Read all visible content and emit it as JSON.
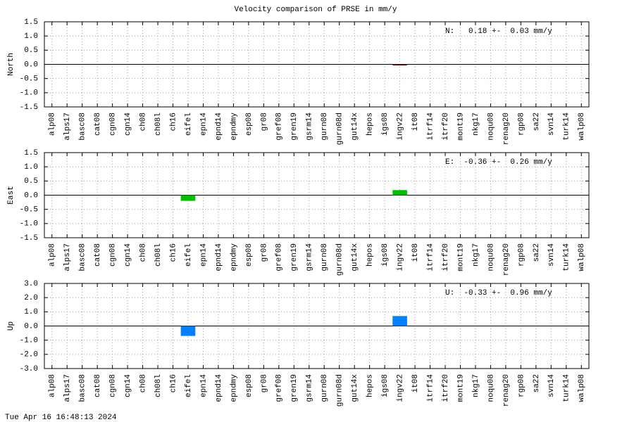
{
  "title": "Velocity comparison of PRSE in mm/y",
  "timestamp": "Tue Apr 16 16:48:13 2024",
  "chart_data": [
    {
      "type": "bar",
      "ylabel": "North",
      "annotation": "N:   0.18 +-  0.03 mm/y",
      "color": "#8b0000",
      "grid": true,
      "categories": [
        "alp08",
        "alps17",
        "basc08",
        "cat08",
        "cgn08",
        "cgn14",
        "ch08",
        "ch08l",
        "ch16",
        "eifel",
        "epn14",
        "epnd14",
        "epndmy",
        "esp08",
        "gr08",
        "gref08",
        "gren19",
        "gsrm14",
        "gurn08",
        "gurn08d",
        "gut14x",
        "hepos",
        "igs08",
        "ingv22",
        "it08",
        "itrf14",
        "itrf20",
        "mont19",
        "nkg17",
        "noqu08",
        "renag20",
        "rgp08",
        "sa22",
        "svn14",
        "turk14",
        "walp08"
      ],
      "values": [
        null,
        null,
        null,
        null,
        null,
        null,
        null,
        null,
        null,
        null,
        null,
        null,
        null,
        null,
        null,
        null,
        null,
        null,
        null,
        null,
        null,
        null,
        null,
        -0.02,
        null,
        null,
        null,
        null,
        null,
        null,
        null,
        null,
        null,
        null,
        null,
        null
      ],
      "ylim": [
        -1.5,
        1.5
      ],
      "yticks": [
        -1.5,
        {
          "value": -1,
          "label": "-1.0"
        },
        -0.5,
        {
          "value": 0,
          "label": "0.0"
        },
        0.5,
        {
          "value": 1,
          "label": "1.0"
        },
        1.5
      ]
    },
    {
      "type": "bar",
      "ylabel": "East",
      "annotation": "E:  -0.36 +-  0.26 mm/y",
      "color": "#00c000",
      "grid": true,
      "categories": [
        "alp08",
        "alps17",
        "basc08",
        "cat08",
        "cgn08",
        "cgn14",
        "ch08",
        "ch08l",
        "ch16",
        "eifel",
        "epn14",
        "epnd14",
        "epndmy",
        "esp08",
        "gr08",
        "gref08",
        "gren19",
        "gsrm14",
        "gurn08",
        "gurn08d",
        "gut14x",
        "hepos",
        "igs08",
        "ingv22",
        "it08",
        "itrf14",
        "itrf20",
        "mont19",
        "nkg17",
        "noqu08",
        "renag20",
        "rgp08",
        "sa22",
        "svn14",
        "turk14",
        "walp08"
      ],
      "values": [
        null,
        null,
        null,
        null,
        null,
        null,
        null,
        null,
        null,
        -0.2,
        null,
        null,
        null,
        null,
        null,
        null,
        null,
        null,
        null,
        null,
        null,
        null,
        null,
        0.18,
        null,
        null,
        null,
        null,
        null,
        null,
        null,
        null,
        null,
        null,
        null,
        null
      ],
      "ylim": [
        -1.5,
        1.5
      ],
      "yticks": [
        -1.5,
        {
          "value": -1,
          "label": "-1.0"
        },
        -0.5,
        {
          "value": 0,
          "label": "0.0"
        },
        0.5,
        {
          "value": 1,
          "label": "1.0"
        },
        1.5
      ]
    },
    {
      "type": "bar",
      "ylabel": "Up",
      "annotation": "U:  -0.33 +-  0.96 mm/y",
      "color": "#0080ff",
      "grid": true,
      "categories": [
        "alp08",
        "alps17",
        "basc08",
        "cat08",
        "cgn08",
        "cgn14",
        "ch08",
        "ch08l",
        "ch16",
        "eifel",
        "epn14",
        "epnd14",
        "epndmy",
        "esp08",
        "gr08",
        "gref08",
        "gren19",
        "gsrm14",
        "gurn08",
        "gurn08d",
        "gut14x",
        "hepos",
        "igs08",
        "ingv22",
        "it08",
        "itrf14",
        "itrf20",
        "mont19",
        "nkg17",
        "noqu08",
        "renag20",
        "rgp08",
        "sa22",
        "svn14",
        "turk14",
        "walp08"
      ],
      "values": [
        null,
        null,
        null,
        null,
        null,
        null,
        null,
        null,
        null,
        -0.7,
        null,
        null,
        null,
        null,
        null,
        null,
        null,
        null,
        null,
        null,
        null,
        null,
        null,
        0.7,
        null,
        null,
        null,
        null,
        null,
        null,
        null,
        null,
        null,
        null,
        null,
        null
      ],
      "ylim": [
        -3,
        3
      ],
      "yticks": [
        {
          "value": -3,
          "label": "-3.0"
        },
        {
          "value": -2,
          "label": "-2.0"
        },
        {
          "value": -1,
          "label": "-1.0"
        },
        {
          "value": 0,
          "label": "0.0"
        },
        {
          "value": 1,
          "label": "1.0"
        },
        {
          "value": 2,
          "label": "2.0"
        },
        {
          "value": 3,
          "label": "3.0"
        }
      ]
    }
  ]
}
